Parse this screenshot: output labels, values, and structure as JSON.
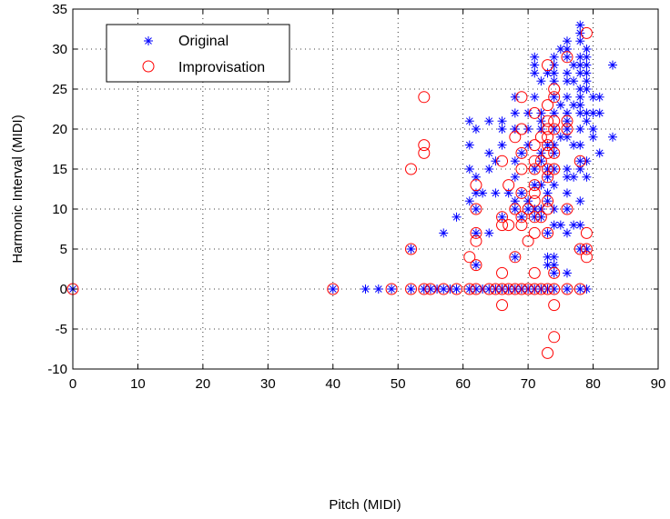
{
  "chart_data": {
    "type": "scatter",
    "xlabel": "Pitch (MIDI)",
    "ylabel": "Harmonic Interval (MIDI)",
    "xlim": [
      0,
      90
    ],
    "ylim": [
      -10,
      35
    ],
    "xticks": [
      0,
      10,
      20,
      30,
      40,
      50,
      60,
      70,
      80,
      90
    ],
    "yticks": [
      -10,
      -5,
      0,
      5,
      10,
      15,
      20,
      25,
      30,
      35
    ],
    "grid": true,
    "legend": "top-left",
    "series": [
      {
        "name": "Original",
        "marker": "asterisk",
        "color": "#0000ff",
        "points": [
          [
            0,
            0
          ],
          [
            40,
            0
          ],
          [
            45,
            0
          ],
          [
            47,
            0
          ],
          [
            49,
            0
          ],
          [
            52,
            0
          ],
          [
            54,
            0
          ],
          [
            55,
            0
          ],
          [
            56,
            0
          ],
          [
            57,
            0
          ],
          [
            58,
            0
          ],
          [
            59,
            0
          ],
          [
            61,
            0
          ],
          [
            62,
            0
          ],
          [
            63,
            0
          ],
          [
            64,
            0
          ],
          [
            65,
            0
          ],
          [
            66,
            0
          ],
          [
            67,
            0
          ],
          [
            68,
            0
          ],
          [
            69,
            0
          ],
          [
            70,
            0
          ],
          [
            71,
            0
          ],
          [
            72,
            0
          ],
          [
            73,
            0
          ],
          [
            74,
            0
          ],
          [
            76,
            0
          ],
          [
            78,
            0
          ],
          [
            79,
            0
          ],
          [
            74,
            2
          ],
          [
            76,
            2
          ],
          [
            73,
            3
          ],
          [
            74,
            3
          ],
          [
            62,
            3
          ],
          [
            73,
            4
          ],
          [
            74,
            4
          ],
          [
            68,
            4
          ],
          [
            52,
            5
          ],
          [
            78,
            5
          ],
          [
            79,
            5
          ],
          [
            57,
            7
          ],
          [
            62,
            7
          ],
          [
            64,
            7
          ],
          [
            73,
            7
          ],
          [
            76,
            7
          ],
          [
            74,
            8
          ],
          [
            75,
            8
          ],
          [
            77,
            8
          ],
          [
            78,
            8
          ],
          [
            59,
            9
          ],
          [
            66,
            9
          ],
          [
            69,
            9
          ],
          [
            71,
            9
          ],
          [
            72,
            9
          ],
          [
            62,
            10
          ],
          [
            68,
            10
          ],
          [
            70,
            10
          ],
          [
            71,
            10
          ],
          [
            72,
            10
          ],
          [
            74,
            10
          ],
          [
            76,
            10
          ],
          [
            61,
            11
          ],
          [
            68,
            11
          ],
          [
            70,
            11
          ],
          [
            73,
            11
          ],
          [
            78,
            11
          ],
          [
            67,
            12
          ],
          [
            69,
            12
          ],
          [
            73,
            12
          ],
          [
            76,
            12
          ],
          [
            62,
            12
          ],
          [
            63,
            12
          ],
          [
            65,
            12
          ],
          [
            71,
            13
          ],
          [
            72,
            13
          ],
          [
            74,
            13
          ],
          [
            62,
            14
          ],
          [
            68,
            14
          ],
          [
            73,
            14
          ],
          [
            76,
            14
          ],
          [
            77,
            14
          ],
          [
            79,
            14
          ],
          [
            61,
            15
          ],
          [
            64,
            15
          ],
          [
            71,
            15
          ],
          [
            73,
            15
          ],
          [
            74,
            15
          ],
          [
            76,
            15
          ],
          [
            78,
            15
          ],
          [
            65,
            16
          ],
          [
            68,
            16
          ],
          [
            72,
            16
          ],
          [
            78,
            16
          ],
          [
            79,
            16
          ],
          [
            64,
            17
          ],
          [
            69,
            17
          ],
          [
            72,
            17
          ],
          [
            74,
            17
          ],
          [
            81,
            17
          ],
          [
            73,
            18
          ],
          [
            61,
            18
          ],
          [
            66,
            18
          ],
          [
            70,
            18
          ],
          [
            74,
            18
          ],
          [
            77,
            18
          ],
          [
            78,
            18
          ],
          [
            83,
            19
          ],
          [
            76,
            19
          ],
          [
            75,
            19
          ],
          [
            80,
            19
          ],
          [
            62,
            20
          ],
          [
            66,
            20
          ],
          [
            68,
            20
          ],
          [
            70,
            20
          ],
          [
            72,
            20
          ],
          [
            74,
            20
          ],
          [
            76,
            20
          ],
          [
            78,
            20
          ],
          [
            80,
            20
          ],
          [
            61,
            21
          ],
          [
            64,
            21
          ],
          [
            66,
            21
          ],
          [
            72,
            21
          ],
          [
            76,
            21
          ],
          [
            79,
            21
          ],
          [
            68,
            22
          ],
          [
            70,
            22
          ],
          [
            72,
            22
          ],
          [
            74,
            22
          ],
          [
            76,
            22
          ],
          [
            78,
            22
          ],
          [
            79,
            22
          ],
          [
            80,
            22
          ],
          [
            81,
            22
          ],
          [
            75,
            23
          ],
          [
            77,
            23
          ],
          [
            78,
            23
          ],
          [
            68,
            24
          ],
          [
            71,
            24
          ],
          [
            74,
            24
          ],
          [
            76,
            24
          ],
          [
            78,
            24
          ],
          [
            80,
            24
          ],
          [
            81,
            24
          ],
          [
            78,
            25
          ],
          [
            79,
            25
          ],
          [
            72,
            26
          ],
          [
            74,
            26
          ],
          [
            76,
            26
          ],
          [
            77,
            26
          ],
          [
            79,
            26
          ],
          [
            71,
            27
          ],
          [
            73,
            27
          ],
          [
            74,
            27
          ],
          [
            76,
            27
          ],
          [
            78,
            27
          ],
          [
            79,
            27
          ],
          [
            71,
            28
          ],
          [
            74,
            28
          ],
          [
            77,
            28
          ],
          [
            78,
            28
          ],
          [
            79,
            28
          ],
          [
            83,
            28
          ],
          [
            71,
            29
          ],
          [
            74,
            29
          ],
          [
            76,
            29
          ],
          [
            78,
            29
          ],
          [
            79,
            29
          ],
          [
            75,
            30
          ],
          [
            76,
            30
          ],
          [
            79,
            30
          ],
          [
            76,
            31
          ],
          [
            78,
            31
          ],
          [
            78,
            32
          ],
          [
            78,
            33
          ]
        ]
      },
      {
        "name": "Improvisation",
        "marker": "circle",
        "color": "#ff0000",
        "points": [
          [
            0,
            0
          ],
          [
            40,
            0
          ],
          [
            49,
            0
          ],
          [
            52,
            0
          ],
          [
            54,
            0
          ],
          [
            55,
            0
          ],
          [
            57,
            0
          ],
          [
            59,
            0
          ],
          [
            61,
            0
          ],
          [
            62,
            0
          ],
          [
            64,
            0
          ],
          [
            65,
            0
          ],
          [
            66,
            0
          ],
          [
            67,
            0
          ],
          [
            68,
            0
          ],
          [
            69,
            0
          ],
          [
            70,
            0
          ],
          [
            71,
            0
          ],
          [
            72,
            0
          ],
          [
            73,
            0
          ],
          [
            74,
            0
          ],
          [
            76,
            0
          ],
          [
            78,
            0
          ],
          [
            66,
            -2
          ],
          [
            74,
            -2
          ],
          [
            74,
            -6
          ],
          [
            73,
            -8
          ],
          [
            71,
            2
          ],
          [
            66,
            2
          ],
          [
            74,
            2
          ],
          [
            62,
            3
          ],
          [
            61,
            4
          ],
          [
            68,
            4
          ],
          [
            79,
            4
          ],
          [
            52,
            5
          ],
          [
            78,
            5
          ],
          [
            79,
            5
          ],
          [
            62,
            6
          ],
          [
            70,
            6
          ],
          [
            62,
            7
          ],
          [
            71,
            7
          ],
          [
            73,
            7
          ],
          [
            79,
            7
          ],
          [
            66,
            8
          ],
          [
            67,
            8
          ],
          [
            69,
            8
          ],
          [
            66,
            9
          ],
          [
            69,
            9
          ],
          [
            71,
            9
          ],
          [
            72,
            9
          ],
          [
            62,
            10
          ],
          [
            68,
            10
          ],
          [
            70,
            10
          ],
          [
            73,
            10
          ],
          [
            76,
            10
          ],
          [
            71,
            11
          ],
          [
            73,
            11
          ],
          [
            69,
            12
          ],
          [
            71,
            12
          ],
          [
            62,
            13
          ],
          [
            67,
            13
          ],
          [
            71,
            13
          ],
          [
            73,
            14
          ],
          [
            52,
            15
          ],
          [
            69,
            15
          ],
          [
            71,
            15
          ],
          [
            73,
            15
          ],
          [
            74,
            15
          ],
          [
            66,
            16
          ],
          [
            71,
            16
          ],
          [
            72,
            16
          ],
          [
            78,
            16
          ],
          [
            54,
            17
          ],
          [
            69,
            17
          ],
          [
            73,
            17
          ],
          [
            74,
            17
          ],
          [
            54,
            18
          ],
          [
            71,
            18
          ],
          [
            73,
            18
          ],
          [
            68,
            19
          ],
          [
            72,
            19
          ],
          [
            73,
            19
          ],
          [
            69,
            20
          ],
          [
            73,
            20
          ],
          [
            74,
            20
          ],
          [
            76,
            20
          ],
          [
            73,
            21
          ],
          [
            74,
            21
          ],
          [
            76,
            21
          ],
          [
            71,
            22
          ],
          [
            73,
            23
          ],
          [
            54,
            24
          ],
          [
            69,
            24
          ],
          [
            74,
            24
          ],
          [
            74,
            25
          ],
          [
            73,
            28
          ],
          [
            76,
            29
          ],
          [
            79,
            32
          ]
        ]
      }
    ]
  }
}
